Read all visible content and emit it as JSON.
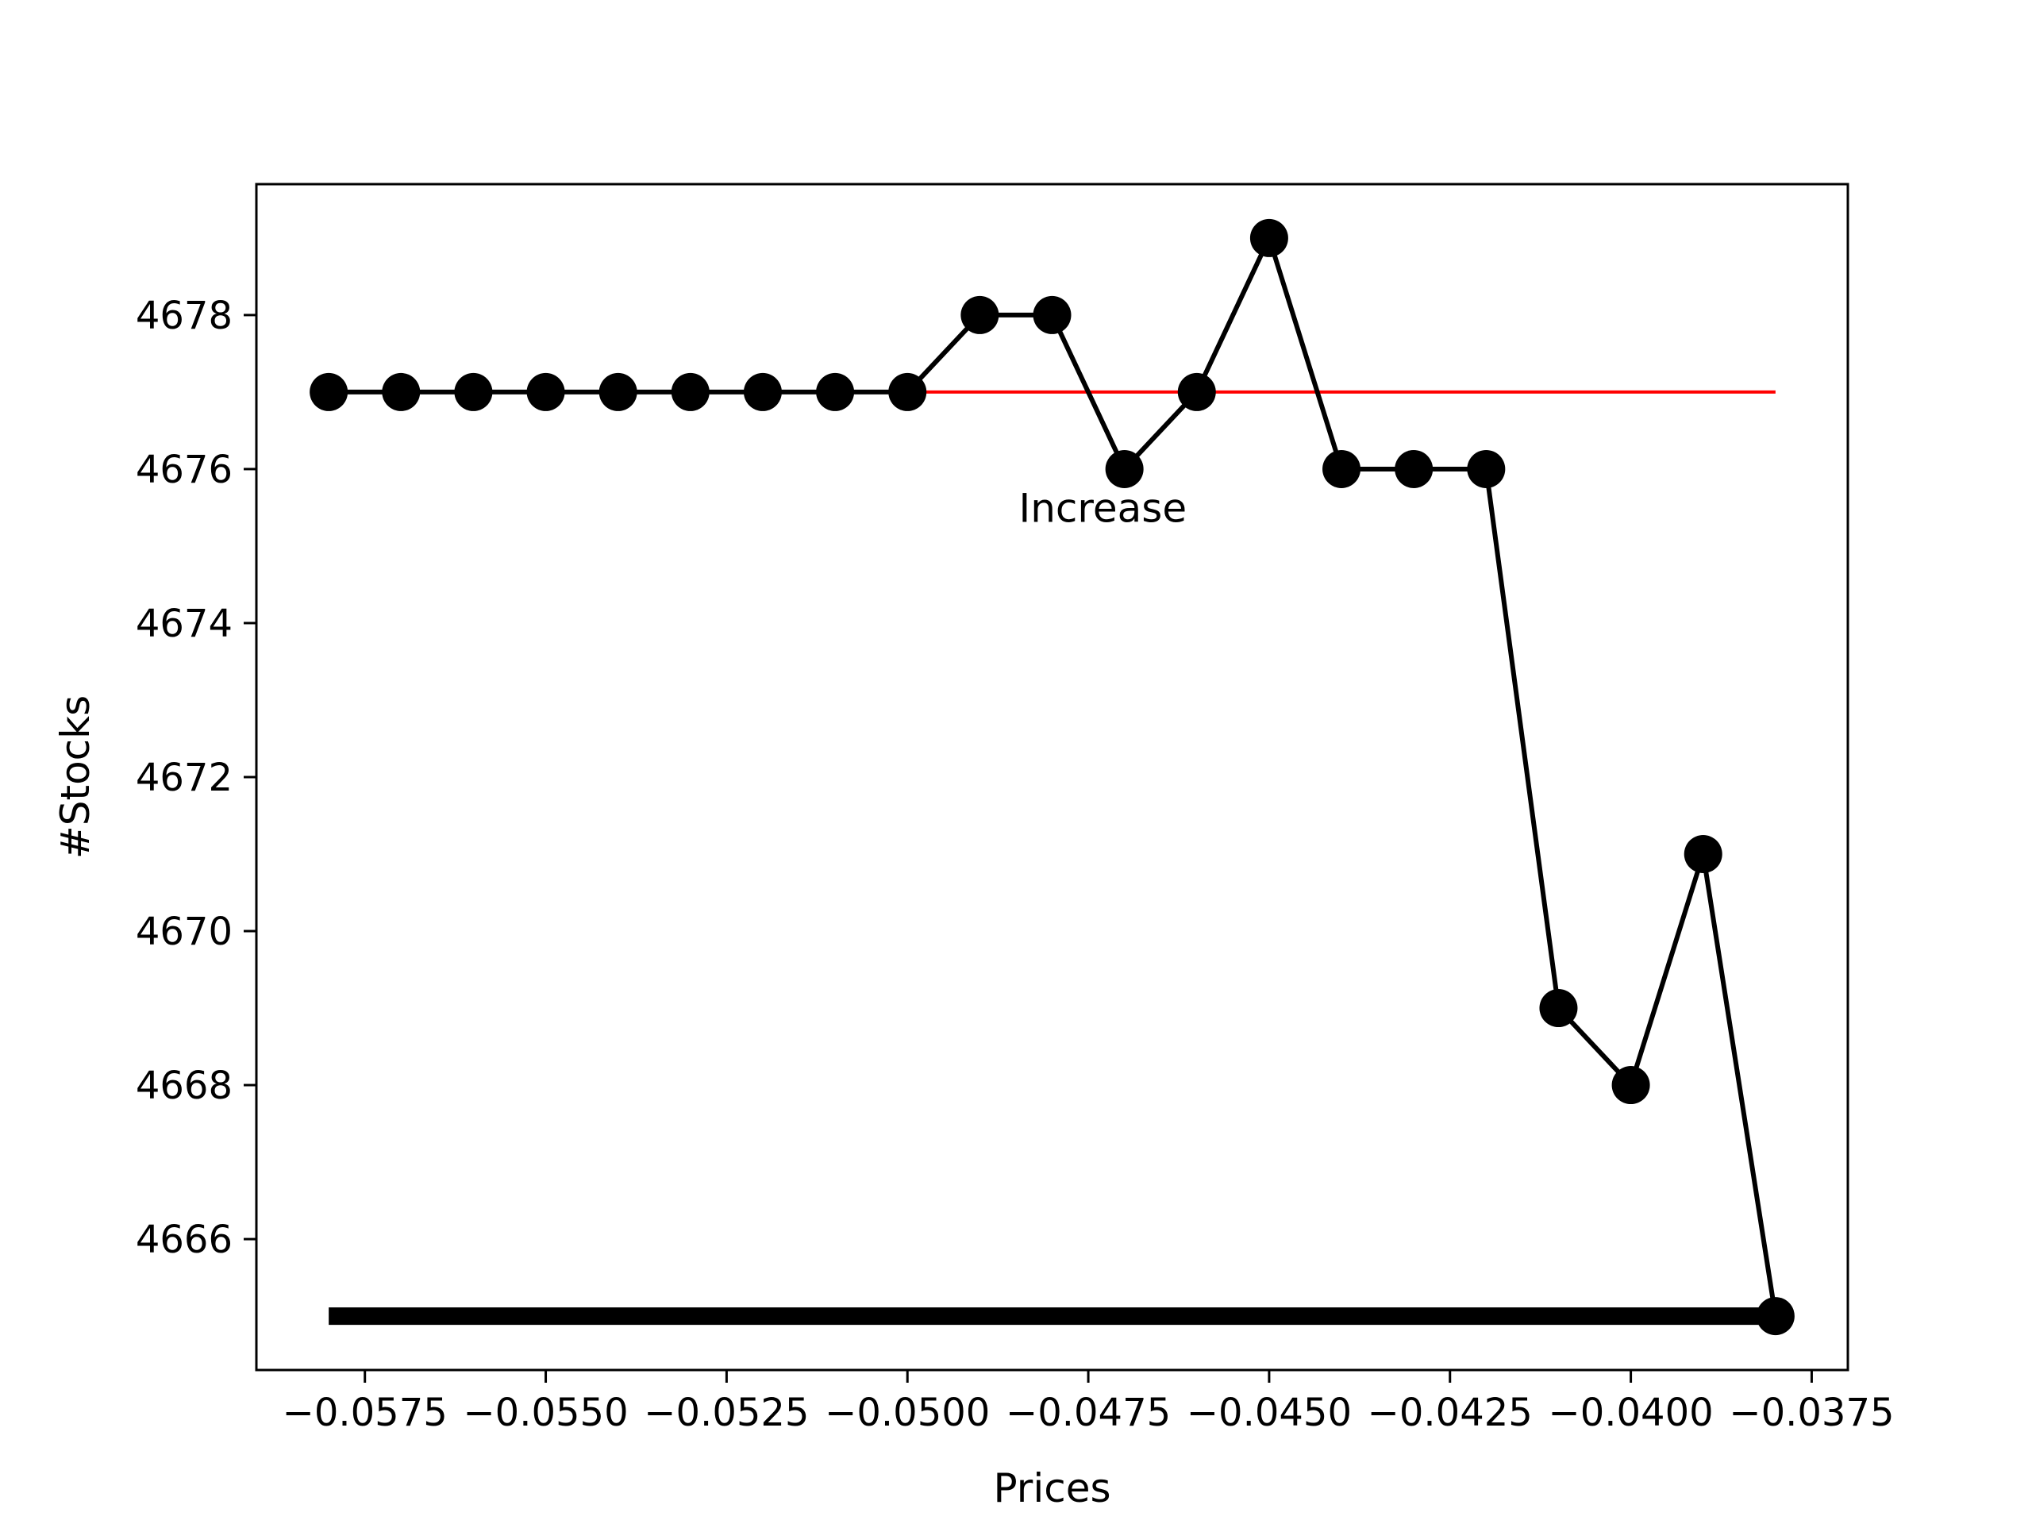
{
  "chart_data": {
    "type": "line",
    "xlabel": "Prices",
    "ylabel": "#Stocks",
    "xlim": [
      -0.059,
      -0.037
    ],
    "ylim": [
      4664.3,
      4679.7
    ],
    "x_ticks": [
      -0.0575,
      -0.055,
      -0.0525,
      -0.05,
      -0.0475,
      -0.045,
      -0.0425,
      -0.04,
      -0.0375
    ],
    "x_tick_labels": [
      "−0.0575",
      "−0.0550",
      "−0.0525",
      "−0.0500",
      "−0.0475",
      "−0.0450",
      "−0.0425",
      "−0.0400",
      "−0.0375"
    ],
    "y_ticks": [
      4666,
      4668,
      4670,
      4672,
      4674,
      4676,
      4678
    ],
    "y_tick_labels": [
      "4666",
      "4668",
      "4670",
      "4672",
      "4674",
      "4676",
      "4678"
    ],
    "grid": false,
    "series": [
      {
        "color": "#000000",
        "marker": "circle",
        "x": [
          -0.058,
          -0.057,
          -0.056,
          -0.055,
          -0.054,
          -0.053,
          -0.052,
          -0.051,
          -0.05,
          -0.049,
          -0.048,
          -0.047,
          -0.046,
          -0.045,
          -0.044,
          -0.043,
          -0.042,
          -0.041,
          -0.04,
          -0.039,
          -0.038
        ],
        "y": [
          4677,
          4677,
          4677,
          4677,
          4677,
          4677,
          4677,
          4677,
          4677,
          4678,
          4678,
          4676,
          4677,
          4679,
          4676,
          4676,
          4676,
          4669,
          4668,
          4671,
          4665
        ]
      }
    ],
    "reference_lines": [
      {
        "color": "#ff0000",
        "style": "thin",
        "x": [
          -0.05,
          -0.038
        ],
        "y": 4677
      },
      {
        "color": "#000000",
        "style": "thick",
        "x": [
          -0.058,
          -0.038
        ],
        "y": 4665
      }
    ],
    "annotations": [
      {
        "text": "Increase",
        "x": -0.0473,
        "y": 4675.5
      }
    ]
  }
}
